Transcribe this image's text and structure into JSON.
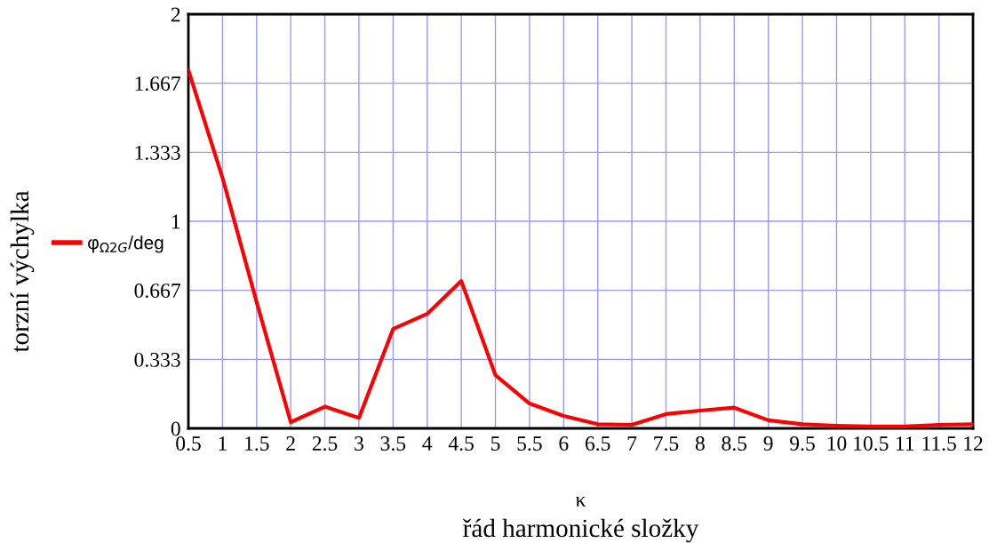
{
  "chart_data": {
    "type": "line",
    "xlabel": "κ",
    "ylabel": "torzní výchylka",
    "annotations": [
      "řád harmonické složky"
    ],
    "x": [
      0.5,
      1,
      1.5,
      2,
      2.5,
      3,
      3.5,
      4,
      4.5,
      5,
      5.5,
      6,
      6.5,
      7,
      7.5,
      8,
      8.5,
      9,
      9.5,
      10,
      10.5,
      11,
      11.5,
      12
    ],
    "series": [
      {
        "name": "φ$_{Ω2G}$/deg",
        "color": "#ff0000",
        "values": [
          1.73,
          1.21,
          0.61,
          0.03,
          0.105,
          0.05,
          0.48,
          0.553,
          0.712,
          0.257,
          0.12,
          0.06,
          0.02,
          0.017,
          0.069,
          0.086,
          0.1,
          0.039,
          0.02,
          0.013,
          0.009,
          0.009,
          0.017,
          0.02
        ]
      }
    ],
    "xlim": [
      0.5,
      12
    ],
    "xticks": [
      0.5,
      1,
      1.5,
      2,
      2.5,
      3,
      3.5,
      4,
      4.5,
      5,
      5.5,
      6,
      6.5,
      7,
      7.5,
      8,
      8.5,
      9,
      9.5,
      10,
      10.5,
      11,
      11.5,
      12
    ],
    "ylim": [
      0,
      2
    ],
    "yticks": [
      0,
      0.333,
      0.667,
      1,
      1.333,
      1.667,
      2
    ],
    "grid": true,
    "legend": "left",
    "marker": "none",
    "line_style": "solid"
  }
}
